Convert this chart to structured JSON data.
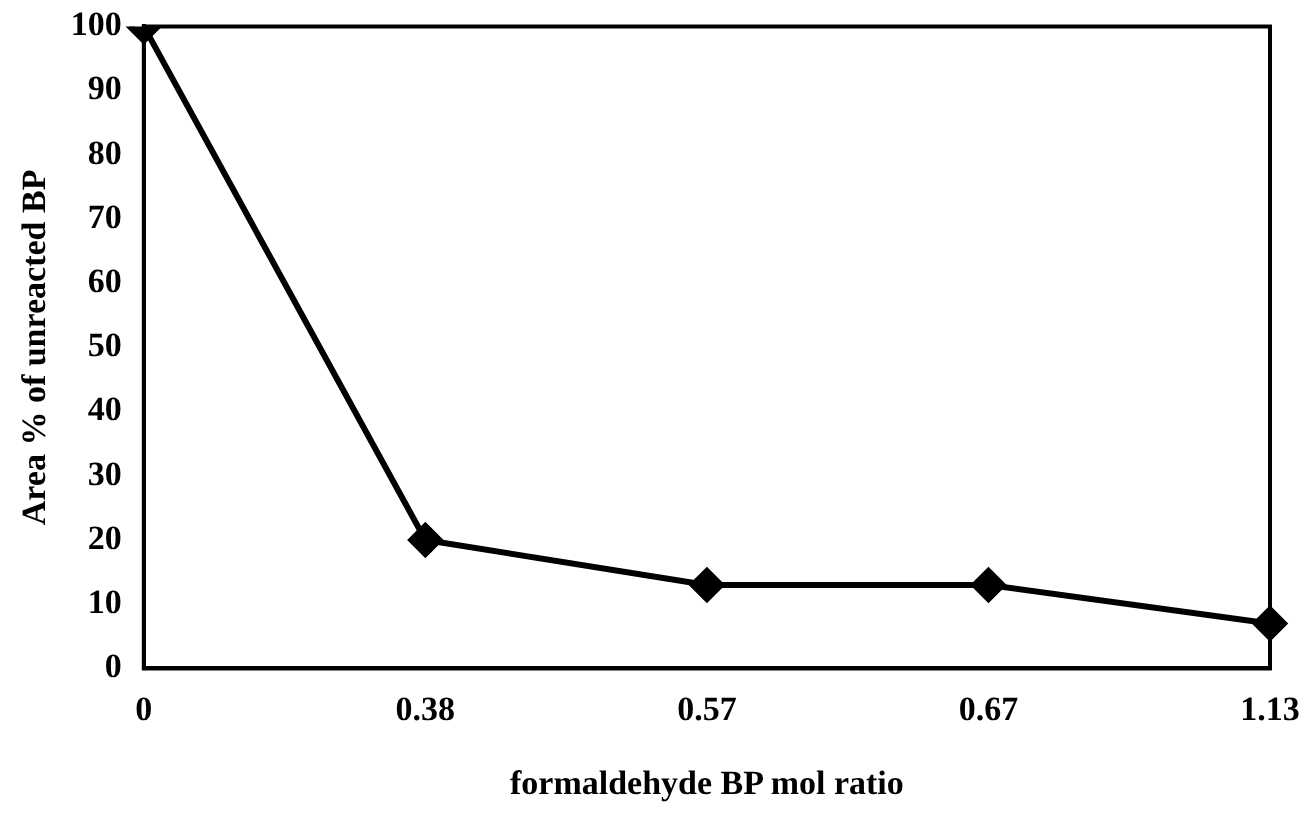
{
  "chart_data": {
    "type": "line",
    "xlabel": "formaldehyde BP mol ratio",
    "ylabel": "Area % of unreacted BP",
    "categories": [
      "0",
      "0.38",
      "0.57",
      "0.67",
      "1.13"
    ],
    "series": [
      {
        "color": "#000000",
        "values": [
          100,
          20,
          13,
          13,
          7
        ]
      }
    ],
    "ylim": [
      0,
      100
    ],
    "yticks": [
      0,
      10,
      20,
      30,
      40,
      50,
      60,
      70,
      80,
      90,
      100
    ],
    "grid": false,
    "legend": false,
    "marker": "diamond",
    "line_style": "solid"
  }
}
